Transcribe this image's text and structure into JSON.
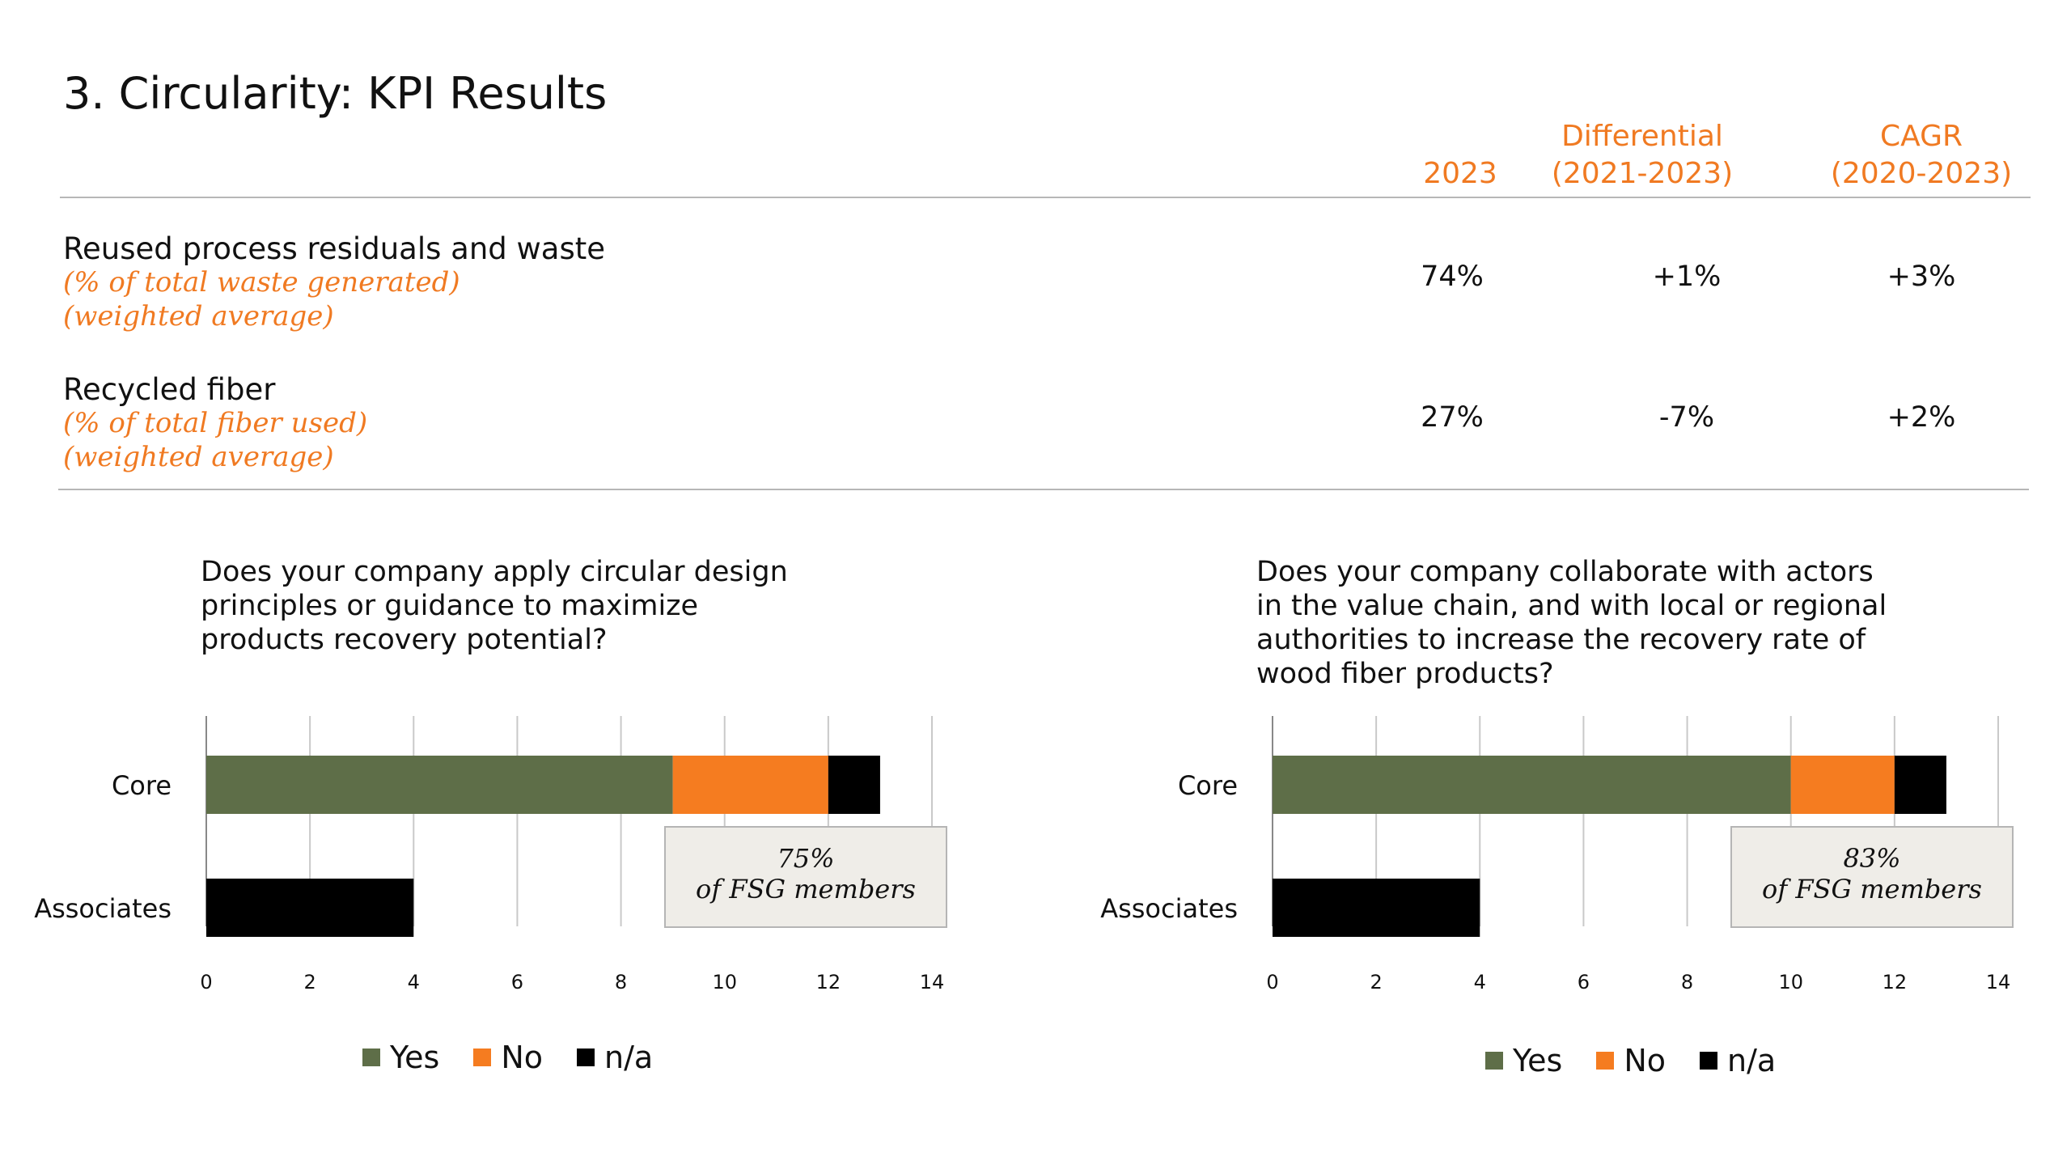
{
  "page": {
    "title": "3. Circularity: KPI Results"
  },
  "table": {
    "headers": {
      "year": "2023",
      "differential": [
        "Differential",
        "(2021-2023)"
      ],
      "cagr": [
        "CAGR",
        "(2020-2023)"
      ]
    },
    "rows": [
      {
        "title": "Reused process residuals and waste",
        "sub": [
          "(% of total waste generated)",
          "(weighted average)"
        ],
        "value_2023": "74%",
        "differential": "+1%",
        "cagr": "+3%"
      },
      {
        "title": "Recycled fiber",
        "sub": [
          "(% of total fiber used)",
          "(weighted average)"
        ],
        "value_2023": "27%",
        "differential": "-7%",
        "cagr": "+2%"
      }
    ]
  },
  "colors": {
    "accent": "#f07a22",
    "yes": "#5e6e48",
    "no": "#f57c20",
    "na": "#000000",
    "callout_bg": "#efede8"
  },
  "chart_data": [
    {
      "type": "bar",
      "stacked": true,
      "orientation": "horizontal",
      "title": [
        "Does your company apply circular design",
        "principles or guidance to maximize",
        "products recovery potential?"
      ],
      "categories": [
        "Core",
        "Associates"
      ],
      "series": [
        {
          "name": "Yes",
          "color": "#5e6e48",
          "values": [
            9,
            0
          ]
        },
        {
          "name": "No",
          "color": "#f57c20",
          "values": [
            3,
            0
          ]
        },
        {
          "name": "n/a",
          "color": "#000000",
          "values": [
            1,
            4
          ]
        }
      ],
      "xlim": [
        0,
        14
      ],
      "xticks": [
        0,
        2,
        4,
        6,
        8,
        10,
        12,
        14
      ],
      "grid": true,
      "legend": "bottom",
      "callout": [
        "75%",
        "of FSG members"
      ]
    },
    {
      "type": "bar",
      "stacked": true,
      "orientation": "horizontal",
      "title": [
        "Does your company collaborate with actors",
        "in the value chain, and with local or regional",
        "authorities to increase the recovery rate of",
        "wood fiber products?"
      ],
      "categories": [
        "Core",
        "Associates"
      ],
      "series": [
        {
          "name": "Yes",
          "color": "#5e6e48",
          "values": [
            10,
            0
          ]
        },
        {
          "name": "No",
          "color": "#f57c20",
          "values": [
            2,
            0
          ]
        },
        {
          "name": "n/a",
          "color": "#000000",
          "values": [
            1,
            4
          ]
        }
      ],
      "xlim": [
        0,
        14
      ],
      "xticks": [
        0,
        2,
        4,
        6,
        8,
        10,
        12,
        14
      ],
      "grid": true,
      "legend": "bottom",
      "callout": [
        "83%",
        "of FSG members"
      ]
    }
  ]
}
